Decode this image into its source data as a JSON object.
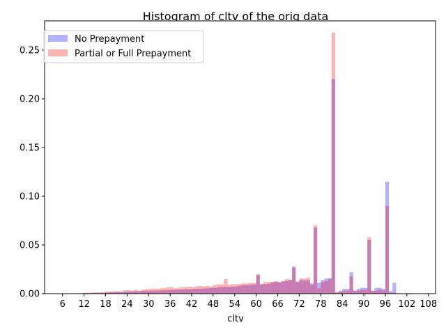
{
  "chart_data": {
    "type": "bar",
    "title": "Histogram of cltv of the orig data",
    "xlabel": "cltv",
    "ylabel": "",
    "xlim": [
      1,
      110
    ],
    "ylim": [
      0,
      0.28
    ],
    "grid": false,
    "legend_position": "top-left",
    "x_ticks": [
      "6",
      "12",
      "18",
      "24",
      "30",
      "36",
      "42",
      "48",
      "54",
      "60",
      "66",
      "72",
      "78",
      "84",
      "90",
      "96",
      "102",
      "108"
    ],
    "y_ticks": [
      "0.00",
      "0.05",
      "0.10",
      "0.15",
      "0.20",
      "0.25"
    ],
    "bin_width": 1,
    "series": [
      {
        "name": "No Prepayment",
        "color": "#0000ff",
        "opacity": 0.3,
        "bins": [
          [
            11,
            0.0005
          ],
          [
            12,
            0.0008
          ],
          [
            13,
            0.0008
          ],
          [
            14,
            0.0009
          ],
          [
            15,
            0.001
          ],
          [
            16,
            0.0009
          ],
          [
            17,
            0.001
          ],
          [
            18,
            0.0012
          ],
          [
            19,
            0.0013
          ],
          [
            20,
            0.0015
          ],
          [
            21,
            0.0015
          ],
          [
            22,
            0.0018
          ],
          [
            23,
            0.002
          ],
          [
            24,
            0.002
          ],
          [
            25,
            0.0022
          ],
          [
            26,
            0.0025
          ],
          [
            27,
            0.0025
          ],
          [
            28,
            0.0027
          ],
          [
            29,
            0.003
          ],
          [
            30,
            0.003
          ],
          [
            31,
            0.003
          ],
          [
            32,
            0.0032
          ],
          [
            33,
            0.0033
          ],
          [
            34,
            0.0035
          ],
          [
            35,
            0.0035
          ],
          [
            36,
            0.0038
          ],
          [
            37,
            0.004
          ],
          [
            38,
            0.004
          ],
          [
            39,
            0.0042
          ],
          [
            40,
            0.0045
          ],
          [
            41,
            0.0045
          ],
          [
            42,
            0.0048
          ],
          [
            43,
            0.005
          ],
          [
            44,
            0.005
          ],
          [
            45,
            0.0052
          ],
          [
            46,
            0.0055
          ],
          [
            47,
            0.006
          ],
          [
            48,
            0.006
          ],
          [
            49,
            0.0065
          ],
          [
            50,
            0.0068
          ],
          [
            51,
            0.007
          ],
          [
            52,
            0.007
          ],
          [
            53,
            0.0072
          ],
          [
            54,
            0.0075
          ],
          [
            55,
            0.008
          ],
          [
            56,
            0.0085
          ],
          [
            57,
            0.0088
          ],
          [
            58,
            0.009
          ],
          [
            59,
            0.0095
          ],
          [
            60,
            0.019
          ],
          [
            61,
            0.0095
          ],
          [
            62,
            0.0098
          ],
          [
            63,
            0.0102
          ],
          [
            64,
            0.0115
          ],
          [
            65,
            0.0125
          ],
          [
            66,
            0.0115
          ],
          [
            67,
            0.0125
          ],
          [
            68,
            0.013
          ],
          [
            69,
            0.014
          ],
          [
            70,
            0.028
          ],
          [
            71,
            0.012
          ],
          [
            72,
            0.014
          ],
          [
            73,
            0.0135
          ],
          [
            74,
            0.0135
          ],
          [
            75,
            0.0105
          ],
          [
            76,
            0.068
          ],
          [
            77,
            0.011
          ],
          [
            78,
            0.014
          ],
          [
            79,
            0.0155
          ],
          [
            80,
            0.016
          ],
          [
            81,
            0.22
          ],
          [
            82,
            0.0012
          ],
          [
            83,
            0.003
          ],
          [
            84,
            0.005
          ],
          [
            85,
            0.005
          ],
          [
            86,
            0.022
          ],
          [
            87,
            0.003
          ],
          [
            88,
            0.005
          ],
          [
            89,
            0.006
          ],
          [
            90,
            0.006
          ],
          [
            91,
            0.055
          ],
          [
            92,
            0.003
          ],
          [
            93,
            0.006
          ],
          [
            94,
            0.006
          ],
          [
            95,
            0.005
          ],
          [
            96,
            0.115
          ],
          [
            97,
            0.0025
          ],
          [
            98,
            0.011
          ],
          [
            99,
            0.0003
          ],
          [
            100,
            0.0003
          ],
          [
            101,
            0.0004
          ],
          [
            102,
            0.0005
          ],
          [
            103,
            0.0002
          ]
        ]
      },
      {
        "name": "Partial or Full Prepayment",
        "color": "#ff0000",
        "opacity": 0.3,
        "bins": [
          [
            11,
            0.0005
          ],
          [
            12,
            0.0008
          ],
          [
            13,
            0.0008
          ],
          [
            14,
            0.001
          ],
          [
            15,
            0.0012
          ],
          [
            16,
            0.0012
          ],
          [
            17,
            0.0013
          ],
          [
            18,
            0.002
          ],
          [
            19,
            0.0022
          ],
          [
            20,
            0.0025
          ],
          [
            21,
            0.0025
          ],
          [
            22,
            0.002
          ],
          [
            23,
            0.0035
          ],
          [
            24,
            0.0035
          ],
          [
            25,
            0.0032
          ],
          [
            26,
            0.0038
          ],
          [
            27,
            0.003
          ],
          [
            28,
            0.0042
          ],
          [
            29,
            0.0045
          ],
          [
            30,
            0.005
          ],
          [
            31,
            0.0052
          ],
          [
            32,
            0.0048
          ],
          [
            33,
            0.0055
          ],
          [
            34,
            0.0058
          ],
          [
            35,
            0.0065
          ],
          [
            36,
            0.0065
          ],
          [
            37,
            0.0055
          ],
          [
            38,
            0.0062
          ],
          [
            39,
            0.0065
          ],
          [
            40,
            0.0068
          ],
          [
            41,
            0.007
          ],
          [
            42,
            0.0065
          ],
          [
            43,
            0.0075
          ],
          [
            44,
            0.0078
          ],
          [
            45,
            0.0075
          ],
          [
            46,
            0.008
          ],
          [
            47,
            0.0072
          ],
          [
            48,
            0.009
          ],
          [
            49,
            0.0095
          ],
          [
            50,
            0.0095
          ],
          [
            51,
            0.015
          ],
          [
            52,
            0.009
          ],
          [
            53,
            0.0095
          ],
          [
            54,
            0.0098
          ],
          [
            55,
            0.01
          ],
          [
            56,
            0.0105
          ],
          [
            57,
            0.0105
          ],
          [
            58,
            0.011
          ],
          [
            59,
            0.011
          ],
          [
            60,
            0.02
          ],
          [
            61,
            0.01
          ],
          [
            62,
            0.012
          ],
          [
            63,
            0.0118
          ],
          [
            64,
            0.0122
          ],
          [
            65,
            0.0125
          ],
          [
            66,
            0.012
          ],
          [
            67,
            0.013
          ],
          [
            68,
            0.0148
          ],
          [
            69,
            0.0145
          ],
          [
            70,
            0.0265
          ],
          [
            71,
            0.0125
          ],
          [
            72,
            0.0155
          ],
          [
            73,
            0.0155
          ],
          [
            74,
            0.0165
          ],
          [
            75,
            0.009
          ],
          [
            76,
            0.07
          ],
          [
            77,
            0.0055
          ],
          [
            78,
            0.012
          ],
          [
            79,
            0.013
          ],
          [
            80,
            0.015
          ],
          [
            81,
            0.268
          ],
          [
            82,
            0.0015
          ],
          [
            83,
            0.002
          ],
          [
            84,
            0.003
          ],
          [
            85,
            0.003
          ],
          [
            86,
            0.0175
          ],
          [
            87,
            0.003
          ],
          [
            88,
            0.003
          ],
          [
            89,
            0.004
          ],
          [
            90,
            0.004
          ],
          [
            91,
            0.058
          ],
          [
            92,
            0.003
          ],
          [
            93,
            0.003
          ],
          [
            94,
            0.004
          ],
          [
            95,
            0.003
          ],
          [
            96,
            0.09
          ],
          [
            97,
            0.001
          ],
          [
            98,
            0.001
          ],
          [
            99,
            0.0003
          ],
          [
            100,
            0.0002
          ],
          [
            101,
            0.0003
          ],
          [
            102,
            0.0003
          ],
          [
            103,
            0.0001
          ]
        ]
      }
    ]
  }
}
